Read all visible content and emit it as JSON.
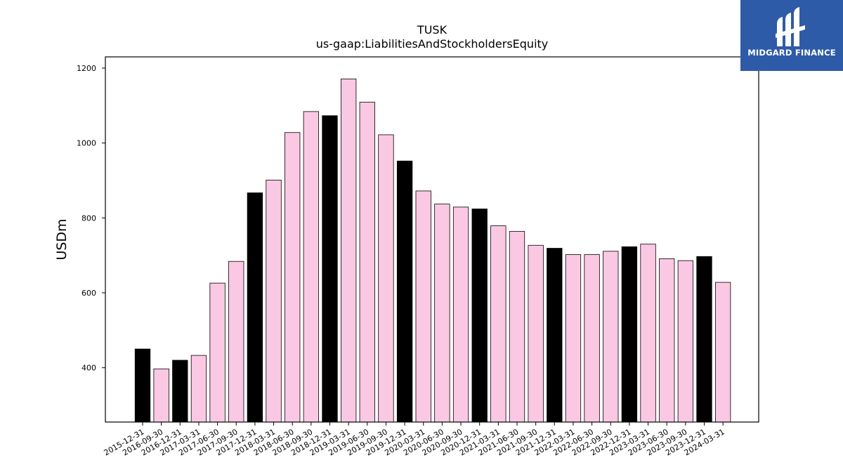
{
  "chart_data": {
    "type": "bar",
    "title": "TUSK",
    "subtitle": "us-gaap:LiabilitiesAndStockholdersEquity",
    "ylabel": "USDm",
    "ylim": [
      255,
      1230
    ],
    "yticks": [
      400,
      600,
      800,
      1000,
      1200
    ],
    "categories": [
      "2015-12-31",
      "2016-09-30",
      "2016-12-31",
      "2017-03-31",
      "2017-06-30",
      "2017-09-30",
      "2017-12-31",
      "2018-03-31",
      "2018-06-30",
      "2018-09-30",
      "2018-12-31",
      "2019-03-31",
      "2019-06-30",
      "2019-09-30",
      "2019-12-31",
      "2020-03-31",
      "2020-06-30",
      "2020-09-30",
      "2020-12-31",
      "2021-03-31",
      "2021-06-30",
      "2021-09-30",
      "2021-12-31",
      "2022-03-31",
      "2022-06-30",
      "2022-09-30",
      "2022-12-31",
      "2023-03-31",
      "2023-06-30",
      "2023-09-30",
      "2023-12-31",
      "2024-03-31"
    ],
    "values": [
      450,
      397,
      420,
      433,
      626,
      684,
      867,
      901,
      1028,
      1084,
      1073,
      1171,
      1109,
      1022,
      952,
      872,
      837,
      829,
      824,
      779,
      764,
      727,
      719,
      702,
      702,
      711,
      723,
      730,
      691,
      686,
      697,
      628
    ],
    "year_end": [
      true,
      false,
      true,
      false,
      false,
      false,
      true,
      false,
      false,
      false,
      true,
      false,
      false,
      false,
      true,
      false,
      false,
      false,
      true,
      false,
      false,
      false,
      true,
      false,
      false,
      false,
      true,
      false,
      false,
      false,
      true,
      false
    ],
    "colors": {
      "year_end": "#000000",
      "quarter": "#fbc8e3",
      "edge": "#000000"
    },
    "grid": false,
    "legend": "none"
  },
  "logo": {
    "text": "MIDGARD FINANCE",
    "background": "#2e5ba8",
    "icon": "midgard-logo-icon"
  }
}
